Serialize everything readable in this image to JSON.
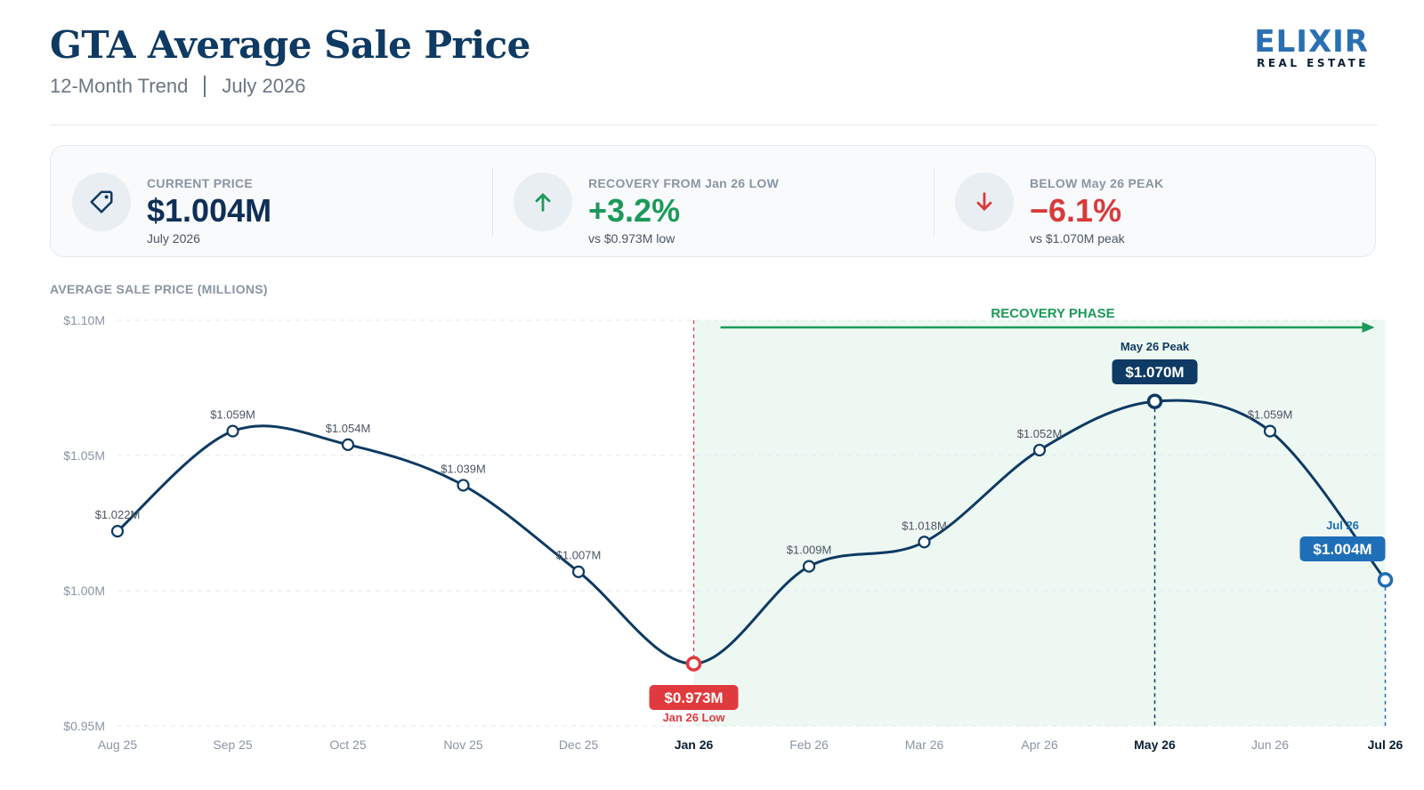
{
  "header": {
    "title": "GTA Average Sale Price",
    "subtitle_left": "12-Month Trend",
    "subtitle_right": "July 2026",
    "logo_top": "ELIXIR",
    "logo_bottom": "REAL ESTATE"
  },
  "cards": [
    {
      "icon": "price-tag-icon",
      "label": "CURRENT PRICE",
      "value": "$1.004M",
      "sub": "July 2026",
      "color": "#0f2f57"
    },
    {
      "icon": "arrow-up-icon",
      "label": "RECOVERY FROM Jan 26 LOW",
      "value": "+3.2%",
      "sub": "vs $0.973M low",
      "color": "#1b9a5a"
    },
    {
      "icon": "arrow-down-icon",
      "label": "BELOW May 26 PEAK",
      "value": "−6.1%",
      "sub": "vs $1.070M peak",
      "color": "#d93a3a"
    }
  ],
  "colors": {
    "line": "#0e3a63",
    "low": "#e03a3e",
    "peak": "#0e3a63",
    "current": "#1f6fb8",
    "recovery": "#1b9a5a"
  },
  "chart_data": {
    "type": "line",
    "ylabel": "AVERAGE SALE PRICE (MILLIONS)",
    "ylim": [
      0.95,
      1.1
    ],
    "yticks": [
      {
        "value": 0.95,
        "label": "$0.95M"
      },
      {
        "value": 1.0,
        "label": "$1.00M"
      },
      {
        "value": 1.05,
        "label": "$1.05M"
      },
      {
        "value": 1.1,
        "label": "$1.10M"
      }
    ],
    "categories": [
      "Aug 25",
      "Sep 25",
      "Oct 25",
      "Nov 25",
      "Dec 25",
      "Jan 26",
      "Feb 26",
      "Mar 26",
      "Apr 26",
      "May 26",
      "Jun 26",
      "Jul 26"
    ],
    "values": [
      1.022,
      1.059,
      1.054,
      1.039,
      1.007,
      0.973,
      1.009,
      1.018,
      1.052,
      1.07,
      1.059,
      1.004
    ],
    "data_labels": [
      "$1.022M",
      "$1.059M",
      "$1.054M",
      "$1.039M",
      "$1.007M",
      "",
      "$1.009M",
      "$1.018M",
      "$1.052M",
      "",
      "$1.059M",
      ""
    ],
    "grid": true,
    "shaded_region": {
      "label": "RECOVERY PHASE",
      "from": "Jan 26",
      "to": "Jul 26"
    },
    "low": {
      "category": "Jan 26",
      "value_label": "$0.973M",
      "caption": "Jan 26 Low"
    },
    "peak": {
      "category": "May 26",
      "value_label": "$1.070M",
      "caption": "May 26 Peak"
    },
    "current": {
      "category": "Jul 26",
      "value_label": "$1.004M",
      "caption": "Jul 26"
    }
  }
}
